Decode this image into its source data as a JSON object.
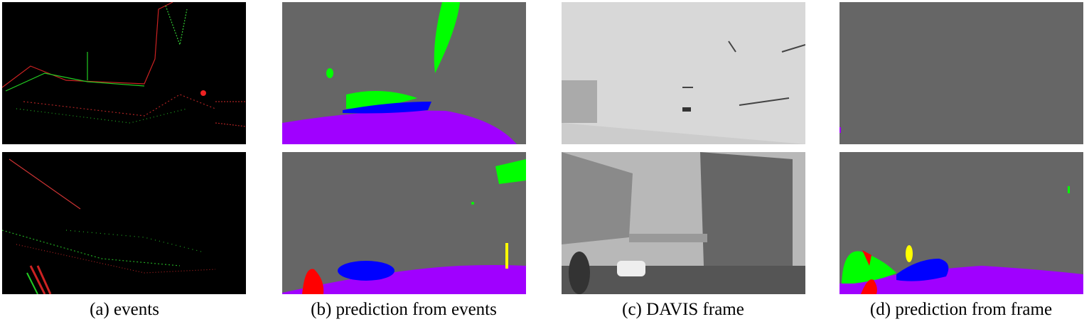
{
  "figure": {
    "captions": [
      "(a) events",
      "(b) prediction from events",
      "(c) DAVIS frame",
      "(d) prediction from frame"
    ],
    "colors": {
      "background_class": "#666666",
      "road": "#a000ff",
      "vegetation": "#00ff00",
      "vehicle": "#0000ff",
      "person": "#ff0000",
      "object": "#ffff00",
      "events_background": "#000000"
    }
  }
}
